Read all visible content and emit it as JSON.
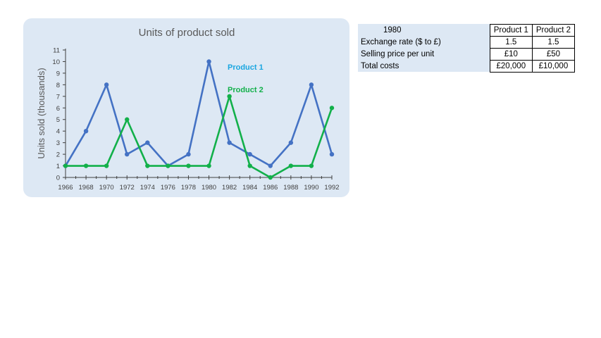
{
  "chart_data": {
    "type": "line",
    "title": "Units of product sold",
    "xlabel": "",
    "ylabel": "Units sold (thousands)",
    "x": [
      "1966",
      "1968",
      "1970",
      "1972",
      "1974",
      "1976",
      "1978",
      "1980",
      "1982",
      "1984",
      "1986",
      "1988",
      "1990",
      "1992"
    ],
    "ylim": [
      0,
      11
    ],
    "yticks": [
      0,
      1,
      2,
      3,
      4,
      5,
      6,
      7,
      8,
      9,
      10,
      11
    ],
    "grid": false,
    "legend": "inline labels",
    "series": [
      {
        "name": "Product 1",
        "color": "#4472c4",
        "label_color": "#1aa6e0",
        "values": [
          1,
          4,
          8,
          2,
          3,
          1,
          2,
          10,
          3,
          2,
          1,
          3,
          8,
          2
        ]
      },
      {
        "name": "Product 2",
        "color": "#12b04a",
        "label_color": "#12b04a",
        "values": [
          1,
          1,
          1,
          5,
          1,
          1,
          1,
          1,
          7,
          1,
          0,
          1,
          1,
          6
        ]
      }
    ]
  },
  "table": {
    "year": "1980",
    "headers": [
      "Product 1",
      "Product 2"
    ],
    "rows": [
      {
        "label": "Exchange rate ($ to £)",
        "values": [
          "1.5",
          "1.5"
        ]
      },
      {
        "label": "Selling price per unit",
        "values": [
          "£10",
          "£50"
        ]
      },
      {
        "label": "Total costs",
        "values": [
          "£20,000",
          "£10,000"
        ]
      }
    ]
  }
}
